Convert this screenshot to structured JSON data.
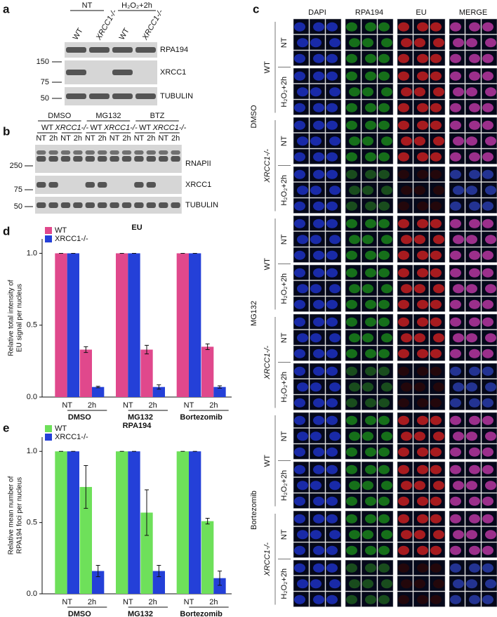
{
  "panel_labels": [
    "a",
    "b",
    "c",
    "d",
    "e"
  ],
  "panel_a": {
    "groups": [
      "NT",
      "H₂O₂+2h"
    ],
    "lanes": [
      "WT",
      "XRCC1-/-",
      "WT",
      "XRCC1-/-"
    ],
    "markers": [
      "150",
      "75",
      "50"
    ],
    "blots": [
      "RPA194",
      "XRCC1",
      "TUBULIN"
    ]
  },
  "panel_b": {
    "treatments": [
      "DMSO",
      "MG132",
      "BTZ"
    ],
    "genotypes": [
      "WT",
      "XRCC1-/-",
      "WT",
      "XRCC1-/-",
      "WT",
      "XRCC1-/-"
    ],
    "times": [
      "NT",
      "2h",
      "NT",
      "2h",
      "NT",
      "2h",
      "NT",
      "2h",
      "NT",
      "2h",
      "NT",
      "2h"
    ],
    "markers": [
      "250",
      "75",
      "50"
    ],
    "blots": [
      "RNAPII",
      "XRCC1",
      "TUBULIN"
    ]
  },
  "panel_c": {
    "columns": [
      "DAPI",
      "RPA194",
      "EU",
      "MERGE"
    ],
    "treatments": [
      "DMSO",
      "MG132",
      "Bortezomib"
    ],
    "genotypes": [
      "WT",
      "XRCC1-/-"
    ],
    "conditions": [
      "NT",
      "H₂O₂+2h"
    ]
  },
  "chart_data": [
    {
      "type": "bar",
      "title": "EU",
      "y_label": [
        "Relative total intensity of",
        "EU signal per nucleus"
      ],
      "categories": [
        "NT",
        "2h",
        "NT",
        "2h",
        "NT",
        "2h"
      ],
      "groups": [
        "DMSO",
        "MG132",
        "Bortezomib"
      ],
      "series": [
        {
          "name": "WT",
          "color": "#e0488c",
          "values": [
            1,
            0.33,
            1,
            0.33,
            1,
            0.35
          ],
          "errors": [
            0,
            0.02,
            0,
            0.03,
            0,
            0.02
          ]
        },
        {
          "name": "XRCC1-/-",
          "color": "#2440d8",
          "values": [
            1,
            0.07,
            1,
            0.07,
            1,
            0.07
          ],
          "errors": [
            0,
            0.005,
            0,
            0.015,
            0,
            0.008
          ]
        }
      ],
      "ylim": [
        0,
        1.1
      ],
      "yticks": [
        {
          "value": 0,
          "label": "0.0"
        },
        {
          "value": 0.5,
          "label": "0.5"
        },
        {
          "value": 1,
          "label": "1.0"
        }
      ],
      "legend": "top-left"
    },
    {
      "type": "bar",
      "title": "RPA194",
      "y_label": [
        "Relative mean number of",
        "RPA194 foci  per nucleus"
      ],
      "categories": [
        "NT",
        "2h",
        "NT",
        "2h",
        "NT",
        "2h"
      ],
      "groups": [
        "DMSO",
        "MG132",
        "Bortezomib"
      ],
      "series": [
        {
          "name": "WT",
          "color": "#6ee05a",
          "values": [
            1,
            0.75,
            1,
            0.57,
            1,
            0.51
          ],
          "errors": [
            0,
            0.15,
            0,
            0.16,
            0,
            0.02
          ]
        },
        {
          "name": "XRCC1-/-",
          "color": "#2440d8",
          "values": [
            1,
            0.16,
            1,
            0.16,
            1,
            0.11
          ],
          "errors": [
            0,
            0.04,
            0,
            0.04,
            0,
            0.05
          ]
        }
      ],
      "ylim": [
        0,
        1.1
      ],
      "yticks": [
        {
          "value": 0,
          "label": "0.0"
        },
        {
          "value": 0.5,
          "label": "0.5"
        },
        {
          "value": 1,
          "label": "1.0"
        }
      ],
      "legend": "top-left"
    }
  ]
}
